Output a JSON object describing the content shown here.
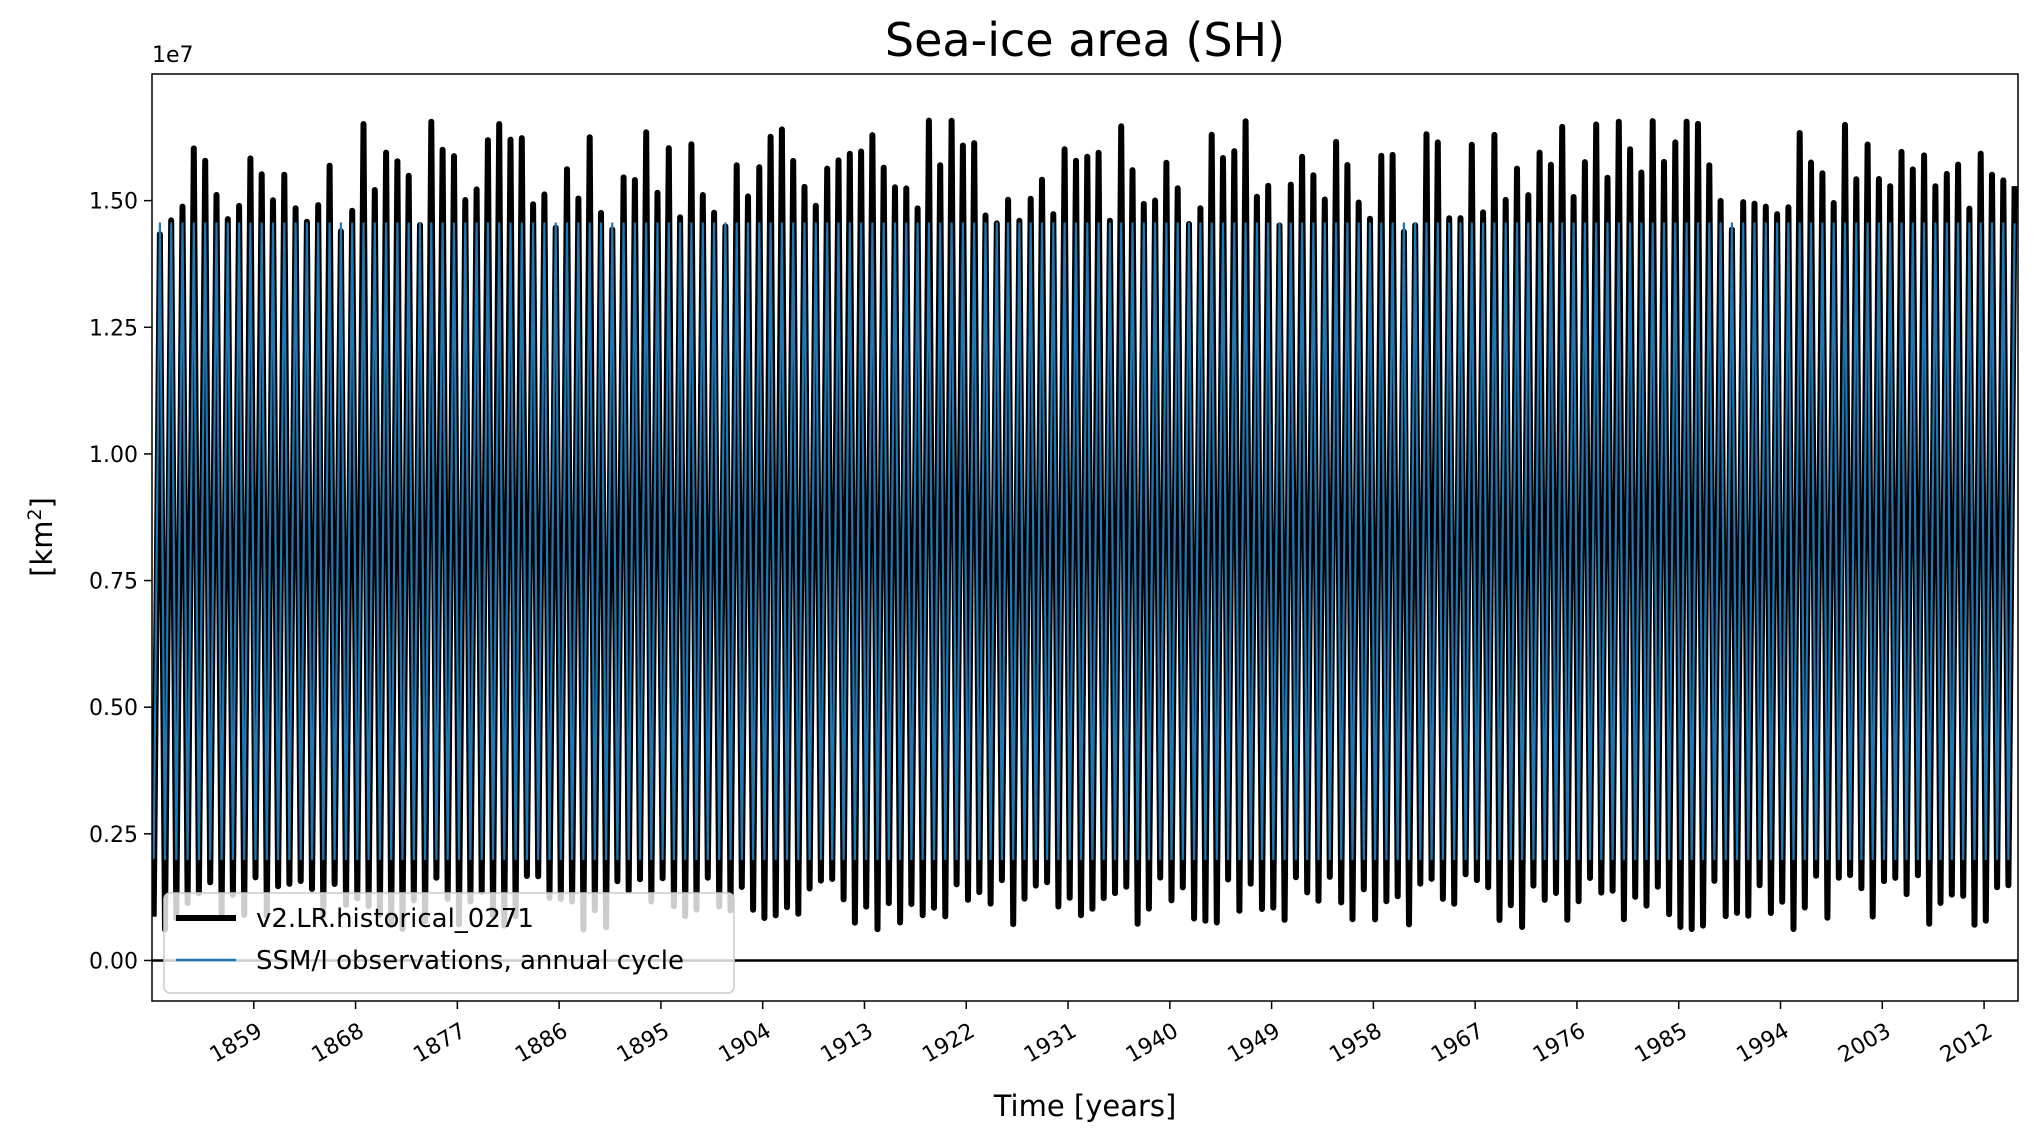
{
  "chart_data": {
    "type": "line",
    "title": "Sea-ice area (SH)",
    "xlabel": "Time [years]",
    "ylabel_text": "[km",
    "ylabel_sup": "2",
    "ylabel_close": "]",
    "y_offset_text": "1e7",
    "xlim": [
      1850,
      2015
    ],
    "ylim": [
      -0.08,
      1.75
    ],
    "x_ticks": [
      1859,
      1868,
      1877,
      1886,
      1895,
      1904,
      1913,
      1922,
      1931,
      1940,
      1949,
      1958,
      1967,
      1976,
      1985,
      1994,
      2003,
      2012
    ],
    "y_ticks": [
      0.0,
      0.25,
      0.5,
      0.75,
      1.0,
      1.25,
      1.5
    ],
    "y_tick_labels": [
      "0.00",
      "0.25",
      "0.50",
      "0.75",
      "1.00",
      "1.25",
      "1.50"
    ],
    "zero_line": 0.0,
    "series": [
      {
        "name": "v2.LR.historical_0271",
        "color": "#000000",
        "annual_max_range": [
          1.43,
          1.66
        ],
        "annual_min_range": [
          0.06,
          0.17
        ]
      },
      {
        "name": "SSM/I observations, annual cycle",
        "color": "#1f77b4",
        "annual_max": 1.455,
        "annual_min": 0.2
      }
    ],
    "legend_position": "lower-left",
    "grid": false
  }
}
